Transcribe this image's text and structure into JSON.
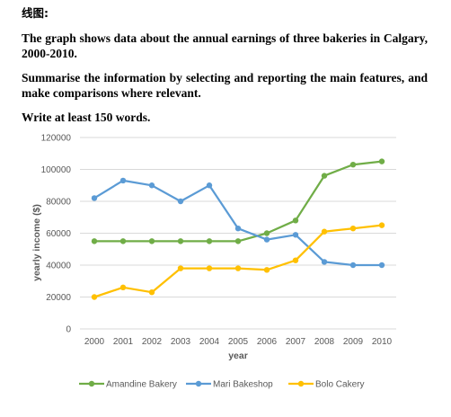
{
  "heading": "线图:",
  "prompt": {
    "p1": "The graph shows data about the annual earnings of three bakeries in Calgary, 2000-2010.",
    "p2": "Summarise the information by selecting and reporting the main features, and make comparisons where relevant.",
    "p3": "Write at least 150 words."
  },
  "chart_data": {
    "type": "line",
    "title": "",
    "xlabel": "year",
    "ylabel": "yearly income ($)",
    "x": [
      "2000",
      "2001",
      "2002",
      "2003",
      "2004",
      "2005",
      "2006",
      "2007",
      "2008",
      "2009",
      "2010"
    ],
    "ylim": [
      0,
      120000
    ],
    "yticks": [
      0,
      20000,
      40000,
      60000,
      80000,
      100000,
      120000
    ],
    "ytick_labels": [
      "0",
      "20000",
      "40000",
      "60000",
      "80000",
      "100000",
      "120000"
    ],
    "grid": true,
    "legend_position": "bottom",
    "series": [
      {
        "name": "Amandine Bakery",
        "color": "#70ad47",
        "values": [
          55000,
          55000,
          55000,
          55000,
          55000,
          55000,
          60000,
          68000,
          96000,
          103000,
          105000
        ]
      },
      {
        "name": "Mari Bakeshop",
        "color": "#5b9bd5",
        "values": [
          82000,
          93000,
          90000,
          80000,
          90000,
          63000,
          56000,
          59000,
          42000,
          40000,
          40000
        ]
      },
      {
        "name": "Bolo Cakery",
        "color": "#ffc000",
        "values": [
          20000,
          26000,
          23000,
          38000,
          38000,
          38000,
          37000,
          43000,
          61000,
          63000,
          65000
        ]
      }
    ]
  }
}
